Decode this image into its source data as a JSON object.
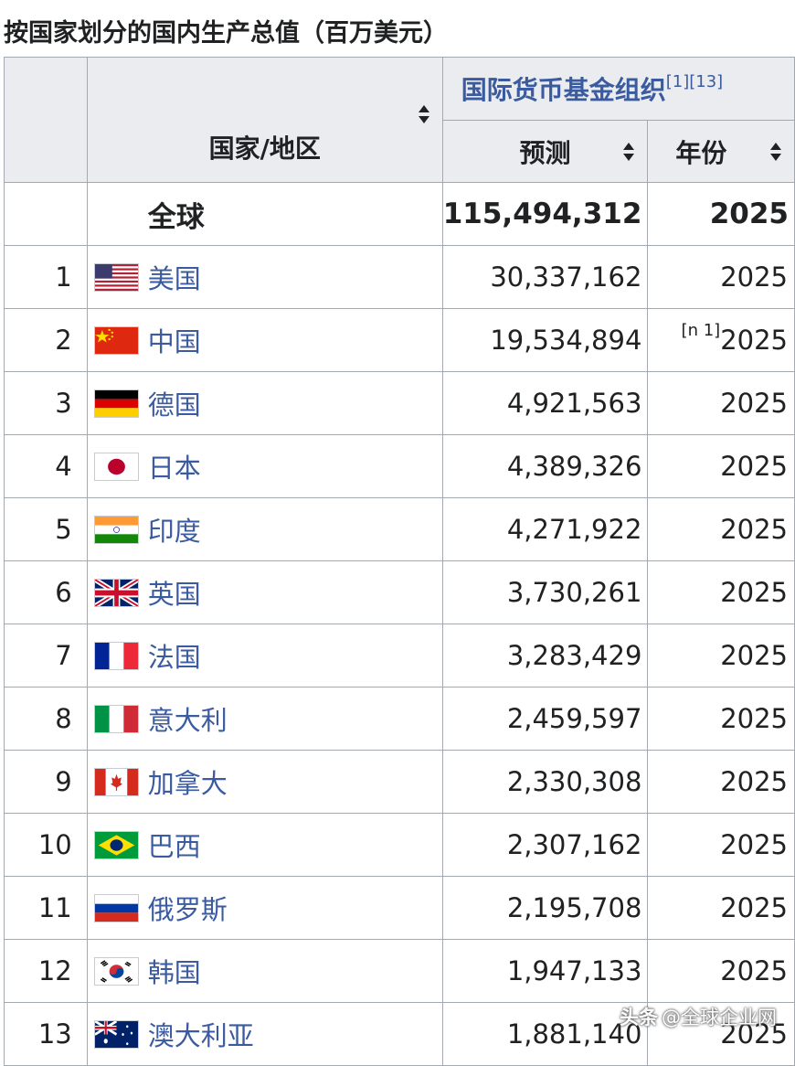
{
  "caption": "按国家划分的国内生产总值（百万美元）",
  "header": {
    "country_col": "国家/地区",
    "imf_group": "国际货币基金组织",
    "imf_refs": "[1][13]",
    "forecast_col": "预测",
    "year_col": "年份"
  },
  "world": {
    "label": "全球",
    "value": "115,494,312",
    "year": "2025"
  },
  "rows": [
    {
      "rank": "1",
      "country": "美国",
      "flag": "us-flag-icon",
      "value": "30,337,162",
      "year": "2025",
      "note": ""
    },
    {
      "rank": "2",
      "country": "中国",
      "flag": "cn-flag-icon",
      "value": "19,534,894",
      "year": "2025",
      "note": "[n 1]"
    },
    {
      "rank": "3",
      "country": "德国",
      "flag": "de-flag-icon",
      "value": "4,921,563",
      "year": "2025",
      "note": ""
    },
    {
      "rank": "4",
      "country": "日本",
      "flag": "jp-flag-icon",
      "value": "4,389,326",
      "year": "2025",
      "note": ""
    },
    {
      "rank": "5",
      "country": "印度",
      "flag": "in-flag-icon",
      "value": "4,271,922",
      "year": "2025",
      "note": ""
    },
    {
      "rank": "6",
      "country": "英国",
      "flag": "gb-flag-icon",
      "value": "3,730,261",
      "year": "2025",
      "note": ""
    },
    {
      "rank": "7",
      "country": "法国",
      "flag": "fr-flag-icon",
      "value": "3,283,429",
      "year": "2025",
      "note": ""
    },
    {
      "rank": "8",
      "country": "意大利",
      "flag": "it-flag-icon",
      "value": "2,459,597",
      "year": "2025",
      "note": ""
    },
    {
      "rank": "9",
      "country": "加拿大",
      "flag": "ca-flag-icon",
      "value": "2,330,308",
      "year": "2025",
      "note": ""
    },
    {
      "rank": "10",
      "country": "巴西",
      "flag": "br-flag-icon",
      "value": "2,307,162",
      "year": "2025",
      "note": ""
    },
    {
      "rank": "11",
      "country": "俄罗斯",
      "flag": "ru-flag-icon",
      "value": "2,195,708",
      "year": "2025",
      "note": ""
    },
    {
      "rank": "12",
      "country": "韩国",
      "flag": "kr-flag-icon",
      "value": "1,947,133",
      "year": "2025",
      "note": ""
    },
    {
      "rank": "13",
      "country": "澳大利亚",
      "flag": "au-flag-icon",
      "value": "1,881,140",
      "year": "2025",
      "note": ""
    }
  ],
  "watermark": {
    "logo": "头条",
    "text": "@全球企业网"
  },
  "colors": {
    "link": "#3a5ba0",
    "header_bg": "#eaecf0",
    "border": "#a2a9b1"
  }
}
